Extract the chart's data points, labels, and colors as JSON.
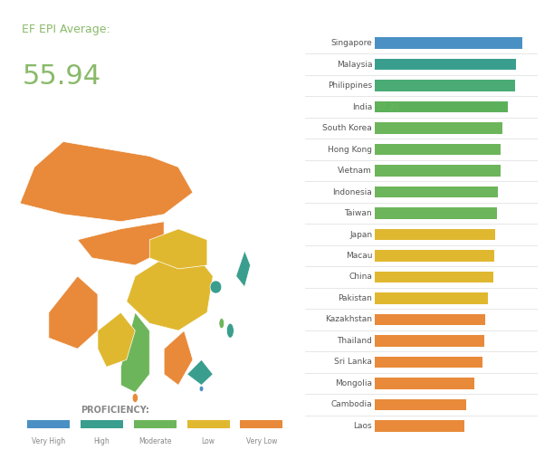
{
  "title_label": "EF EPI Average:",
  "title_value": "55.94",
  "title_label_color": "#8aba6a",
  "title_value_color": "#8aba6a",
  "background_color": "#ffffff",
  "countries": [
    "Singapore",
    "Malaysia",
    "Philippines",
    "India",
    "South Korea",
    "Hong Kong",
    "Vietnam",
    "Indonesia",
    "Taiwan",
    "Japan",
    "Macau",
    "China",
    "Pakistan",
    "Kazakhstan",
    "Thailand",
    "Sri Lanka",
    "Mongolia",
    "Cambodia",
    "Laos"
  ],
  "values": [
    63.52,
    60.7,
    60.33,
    57.3,
    54.87,
    54.29,
    54.06,
    52.94,
    52.82,
    51.69,
    51.36,
    50.94,
    48.78,
    47.42,
    47.21,
    46.58,
    42.77,
    39.48,
    38.45
  ],
  "bar_colors": [
    "#4a90c4",
    "#3a9e8e",
    "#4aab75",
    "#5db05a",
    "#6db55a",
    "#6db55a",
    "#6db55a",
    "#6db55a",
    "#6db55a",
    "#e0b830",
    "#e0b830",
    "#e0b830",
    "#e0b830",
    "#e88a3a",
    "#e88a3a",
    "#e88a3a",
    "#e88a3a",
    "#e88a3a",
    "#e88a3a"
  ],
  "value_colors": [
    "#4a90c4",
    "#3a9e8e",
    "#4aab75",
    "#6db55a",
    "#6db55a",
    "#6db55a",
    "#6db55a",
    "#6db55a",
    "#6db55a",
    "#e0b830",
    "#e0b830",
    "#e0b830",
    "#e0b830",
    "#e88a3a",
    "#e88a3a",
    "#e88a3a",
    "#e88a3a",
    "#e88a3a",
    "#e88a3a"
  ],
  "legend_colors": [
    "#4a90c4",
    "#3a9e8e",
    "#6db55a",
    "#e0b830",
    "#e88a3a"
  ],
  "legend_labels": [
    "Very High",
    "High",
    "Moderate",
    "Low",
    "Very Low"
  ],
  "legend_title": "PROFICIENCY:",
  "bar_max": 70
}
